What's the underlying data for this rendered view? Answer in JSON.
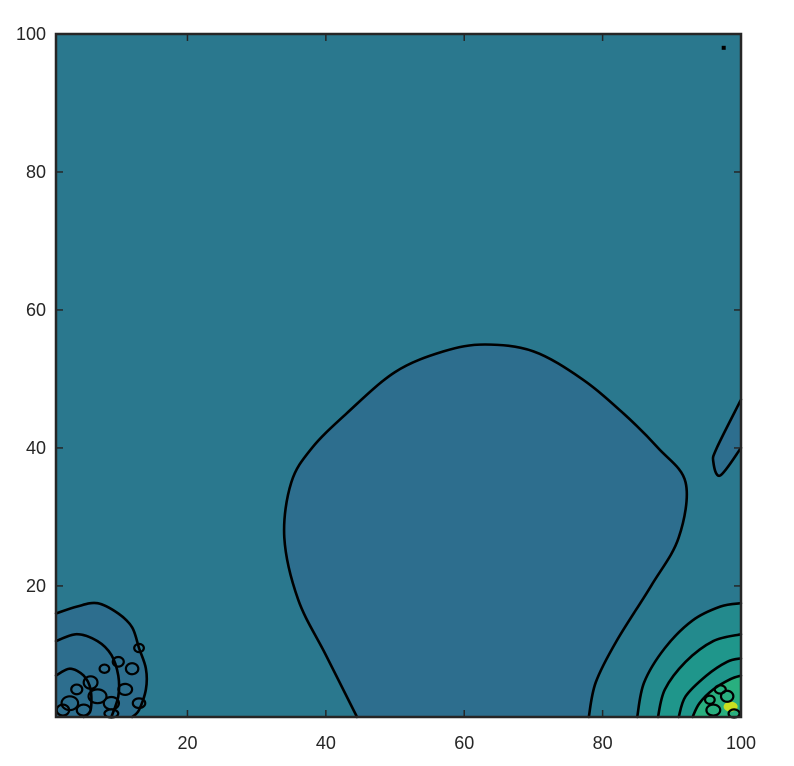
{
  "chart_data": {
    "type": "contour",
    "title": "",
    "xlabel": "",
    "ylabel": "",
    "xlim": [
      1,
      100
    ],
    "ylim": [
      1,
      100
    ],
    "x_ticks": [
      20,
      40,
      60,
      80,
      100
    ],
    "y_ticks": [
      20,
      40,
      60,
      80,
      100
    ],
    "grid": false,
    "legend": "none",
    "colors": {
      "background_level": "#2a788e",
      "low_level": "#2d6e8e",
      "mid_level_1": "#238a8d",
      "mid_level_2": "#1f968b",
      "mid_level_3": "#29af7f",
      "peak_level": "#c8e020",
      "contour_line": "#000000",
      "axis": "#262626"
    },
    "contours": [
      {
        "name": "central-basin",
        "level": "low",
        "points": [
          [
            44.5,
            1
          ],
          [
            40,
            10
          ],
          [
            36,
            18
          ],
          [
            34,
            27
          ],
          [
            35,
            35
          ],
          [
            38,
            40
          ],
          [
            43,
            45
          ],
          [
            50,
            51
          ],
          [
            57,
            54
          ],
          [
            63,
            55
          ],
          [
            70,
            54
          ],
          [
            77,
            50
          ],
          [
            83,
            45
          ],
          [
            88,
            40
          ],
          [
            92,
            35
          ],
          [
            91,
            27
          ],
          [
            87,
            20
          ],
          [
            82,
            12
          ],
          [
            79,
            6
          ],
          [
            78,
            1
          ]
        ]
      },
      {
        "name": "right-edge-basin",
        "level": "low",
        "points": [
          [
            100,
            40
          ],
          [
            97,
            36
          ],
          [
            96,
            38
          ],
          [
            96.5,
            40
          ],
          [
            100,
            47
          ]
        ]
      },
      {
        "name": "right-peak-ring-1",
        "level": "mid",
        "points": [
          [
            85,
            1
          ],
          [
            86,
            6
          ],
          [
            89,
            11
          ],
          [
            93,
            15
          ],
          [
            97,
            17
          ],
          [
            100,
            17.5
          ]
        ]
      },
      {
        "name": "right-peak-ring-2",
        "level": "mid",
        "points": [
          [
            88,
            1
          ],
          [
            89,
            5
          ],
          [
            92,
            9
          ],
          [
            96,
            12
          ],
          [
            100,
            13
          ]
        ]
      },
      {
        "name": "right-peak-ring-3",
        "level": "mid",
        "points": [
          [
            91,
            1
          ],
          [
            92,
            4
          ],
          [
            95,
            7
          ],
          [
            98,
            9
          ],
          [
            100,
            9.5
          ]
        ]
      },
      {
        "name": "right-peak-ring-4",
        "level": "mid",
        "points": [
          [
            93,
            1
          ],
          [
            94,
            3
          ],
          [
            96,
            5
          ],
          [
            98.5,
            6.5
          ],
          [
            100,
            7
          ]
        ]
      },
      {
        "name": "left-corner-ring-1",
        "level": "low",
        "points": [
          [
            1,
            16
          ],
          [
            4,
            17
          ],
          [
            7,
            17.5
          ],
          [
            10,
            16
          ],
          [
            12,
            14
          ],
          [
            13,
            11
          ],
          [
            14,
            8
          ],
          [
            14,
            5
          ],
          [
            13,
            2
          ],
          [
            12,
            1
          ]
        ]
      },
      {
        "name": "left-corner-ring-2",
        "level": "low",
        "points": [
          [
            1,
            12
          ],
          [
            4,
            13
          ],
          [
            7,
            12
          ],
          [
            9,
            10
          ],
          [
            10,
            7
          ],
          [
            10,
            4
          ],
          [
            9,
            1
          ]
        ]
      },
      {
        "name": "left-corner-ring-3",
        "level": "low",
        "points": [
          [
            1,
            7
          ],
          [
            3,
            8
          ],
          [
            5,
            7
          ],
          [
            6,
            5
          ],
          [
            6,
            2
          ],
          [
            5,
            1
          ]
        ]
      }
    ]
  }
}
